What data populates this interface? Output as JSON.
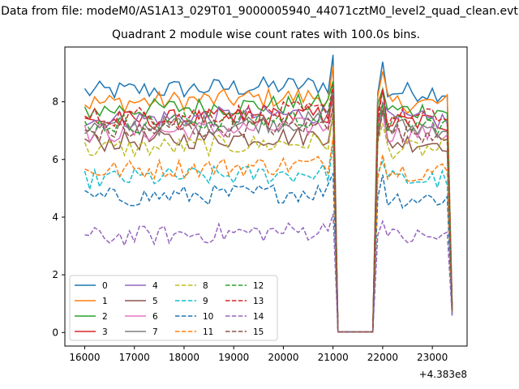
{
  "figure": {
    "suptitle": "Data from file: modeM0/AS1A13_029T01_9000005940_44071cztM0_level2_quad_clean.evt"
  },
  "chart_data": {
    "type": "line",
    "title": "Quadrant 2 module wise count rates with 100.0s bins.",
    "xlabel": "",
    "ylabel": "",
    "x_offset_label": "+4.383e8",
    "xlim": [
      15600,
      23700
    ],
    "ylim": [
      -0.47,
      9.9
    ],
    "xticks": [
      16000,
      17000,
      18000,
      19000,
      20000,
      21000,
      22000,
      23000
    ],
    "yticks": [
      0,
      2,
      4,
      6,
      8
    ],
    "grid": false,
    "legend": {
      "placement": "lower-left",
      "ncol": 4
    },
    "x_start": 16000,
    "x_step": 100,
    "n_points": 75,
    "gap": {
      "drop_start_index": 51,
      "drop_end_index": 58,
      "low_value": 0.02
    },
    "series": [
      {
        "name": "0",
        "color": "#1f77b4",
        "linestyle": "solid",
        "level": 8.35,
        "end_value": 0.9
      },
      {
        "name": "1",
        "color": "#ff7f0e",
        "linestyle": "solid",
        "level": 7.95,
        "end_value": 0.85
      },
      {
        "name": "2",
        "color": "#2ca02c",
        "linestyle": "solid",
        "level": 7.7,
        "end_value": 0.85
      },
      {
        "name": "3",
        "color": "#d62728",
        "linestyle": "solid",
        "level": 7.3,
        "end_value": 0.8
      },
      {
        "name": "4",
        "color": "#9467bd",
        "linestyle": "solid",
        "level": 7.35,
        "end_value": 0.8
      },
      {
        "name": "5",
        "color": "#8c564b",
        "linestyle": "solid",
        "level": 6.6,
        "end_value": 0.75
      },
      {
        "name": "6",
        "color": "#e377c2",
        "linestyle": "solid",
        "level": 6.9,
        "end_value": 0.75
      },
      {
        "name": "7",
        "color": "#7f7f7f",
        "linestyle": "solid",
        "level": 7.1,
        "end_value": 0.75
      },
      {
        "name": "8",
        "color": "#bcbd22",
        "linestyle": "dashed",
        "level": 6.35,
        "end_value": 0.7
      },
      {
        "name": "9",
        "color": "#17becf",
        "linestyle": "dashed",
        "level": 5.3,
        "end_value": 0.65
      },
      {
        "name": "10",
        "color": "#1f77b4",
        "linestyle": "dashed",
        "level": 4.65,
        "end_value": 0.6
      },
      {
        "name": "11",
        "color": "#ff7f0e",
        "linestyle": "dashed",
        "level": 5.6,
        "end_value": 0.65
      },
      {
        "name": "12",
        "color": "#2ca02c",
        "linestyle": "dashed",
        "level": 7.2,
        "end_value": 0.75
      },
      {
        "name": "13",
        "color": "#d62728",
        "linestyle": "dashed",
        "level": 7.45,
        "end_value": 0.8
      },
      {
        "name": "14",
        "color": "#9467bd",
        "linestyle": "dashed",
        "level": 3.3,
        "end_value": 0.55
      },
      {
        "name": "15",
        "color": "#8c564b",
        "linestyle": "dashed",
        "level": 6.95,
        "end_value": 0.75
      }
    ]
  }
}
